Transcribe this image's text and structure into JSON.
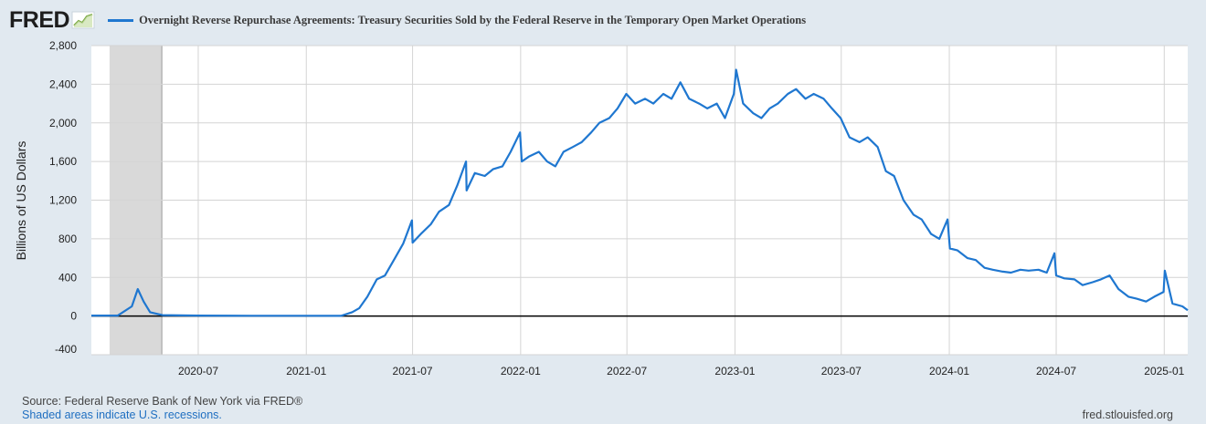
{
  "header": {
    "logo": "FRED",
    "series_title": "Overnight Reverse Repurchase Agreements: Treasury Securities Sold by the Federal Reserve in the Temporary Open Market Operations"
  },
  "footer": {
    "source": "Source: Federal Reserve Bank of New York via FRED®",
    "shaded_note": "Shaded areas indicate U.S. recessions.",
    "site": "fred.stlouisfed.org"
  },
  "colors": {
    "line": "#1f77d0",
    "plot_bg": "#ffffff",
    "page_bg": "#e1e9f0",
    "recession": "#d9d9d9"
  },
  "chart_data": {
    "type": "line",
    "title": "Overnight Reverse Repurchase Agreements: Treasury Securities Sold by the Federal Reserve in the Temporary Open Market Operations",
    "xlabel": "",
    "ylabel": "Billions of US Dollars",
    "ylim": [
      -400,
      2800
    ],
    "yticks": [
      -400,
      0,
      400,
      800,
      1200,
      1600,
      2000,
      2400,
      2800
    ],
    "ytick_labels": [
      "-400",
      "0",
      "400",
      "800",
      "1,200",
      "1,600",
      "2,000",
      "2,400",
      "2,800"
    ],
    "xlim": [
      "2020-01-01",
      "2025-02-10"
    ],
    "xticks": [
      "2020-07",
      "2021-01",
      "2021-07",
      "2022-01",
      "2022-07",
      "2023-01",
      "2023-07",
      "2024-01",
      "2024-07",
      "2025-01"
    ],
    "grid": true,
    "recessions": [
      {
        "start": "2020-02-01",
        "end": "2020-04-30"
      }
    ],
    "series": [
      {
        "name": "Overnight Reverse Repurchase Agreements",
        "x": [
          "2020-01-01",
          "2020-02-15",
          "2020-03-10",
          "2020-03-20",
          "2020-03-30",
          "2020-04-10",
          "2020-05-01",
          "2020-07-01",
          "2020-10-01",
          "2021-01-01",
          "2021-03-01",
          "2021-03-20",
          "2021-04-01",
          "2021-04-15",
          "2021-05-01",
          "2021-05-15",
          "2021-06-01",
          "2021-06-15",
          "2021-06-30",
          "2021-07-01",
          "2021-07-15",
          "2021-08-01",
          "2021-08-15",
          "2021-09-01",
          "2021-09-15",
          "2021-09-30",
          "2021-10-01",
          "2021-10-15",
          "2021-11-01",
          "2021-11-15",
          "2021-12-01",
          "2021-12-15",
          "2021-12-31",
          "2022-01-03",
          "2022-01-15",
          "2022-02-01",
          "2022-02-15",
          "2022-03-01",
          "2022-03-15",
          "2022-03-31",
          "2022-04-15",
          "2022-05-01",
          "2022-05-15",
          "2022-06-01",
          "2022-06-15",
          "2022-06-30",
          "2022-07-15",
          "2022-08-01",
          "2022-08-15",
          "2022-09-01",
          "2022-09-15",
          "2022-09-30",
          "2022-10-15",
          "2022-11-01",
          "2022-11-15",
          "2022-12-01",
          "2022-12-15",
          "2022-12-30",
          "2023-01-03",
          "2023-01-15",
          "2023-02-01",
          "2023-02-15",
          "2023-03-01",
          "2023-03-15",
          "2023-04-01",
          "2023-04-15",
          "2023-05-01",
          "2023-05-15",
          "2023-06-01",
          "2023-06-15",
          "2023-06-30",
          "2023-07-15",
          "2023-08-01",
          "2023-08-15",
          "2023-09-01",
          "2023-09-15",
          "2023-09-29",
          "2023-10-15",
          "2023-11-01",
          "2023-11-15",
          "2023-12-01",
          "2023-12-15",
          "2023-12-29",
          "2024-01-02",
          "2024-01-15",
          "2024-02-01",
          "2024-02-15",
          "2024-03-01",
          "2024-03-15",
          "2024-04-01",
          "2024-04-15",
          "2024-05-01",
          "2024-05-15",
          "2024-06-01",
          "2024-06-15",
          "2024-06-28",
          "2024-07-01",
          "2024-07-15",
          "2024-08-01",
          "2024-08-15",
          "2024-09-01",
          "2024-09-15",
          "2024-09-30",
          "2024-10-15",
          "2024-11-01",
          "2024-11-15",
          "2024-12-01",
          "2024-12-15",
          "2024-12-31",
          "2025-01-02",
          "2025-01-15",
          "2025-02-01",
          "2025-02-10"
        ],
        "values": [
          5,
          5,
          100,
          280,
          150,
          40,
          10,
          5,
          3,
          3,
          2,
          40,
          80,
          200,
          380,
          420,
          600,
          750,
          990,
          760,
          850,
          950,
          1080,
          1150,
          1350,
          1600,
          1300,
          1480,
          1450,
          1520,
          1550,
          1700,
          1900,
          1600,
          1650,
          1700,
          1600,
          1550,
          1700,
          1750,
          1800,
          1900,
          2000,
          2050,
          2150,
          2300,
          2200,
          2250,
          2200,
          2300,
          2250,
          2420,
          2250,
          2200,
          2150,
          2200,
          2050,
          2300,
          2550,
          2200,
          2100,
          2050,
          2150,
          2200,
          2300,
          2350,
          2250,
          2300,
          2250,
          2150,
          2050,
          1850,
          1800,
          1850,
          1750,
          1500,
          1450,
          1200,
          1050,
          1000,
          850,
          800,
          1000,
          700,
          680,
          600,
          580,
          500,
          480,
          460,
          450,
          480,
          470,
          480,
          450,
          650,
          420,
          390,
          380,
          320,
          350,
          380,
          420,
          280,
          200,
          180,
          150,
          200,
          250,
          470,
          130,
          100,
          60
        ]
      }
    ]
  }
}
